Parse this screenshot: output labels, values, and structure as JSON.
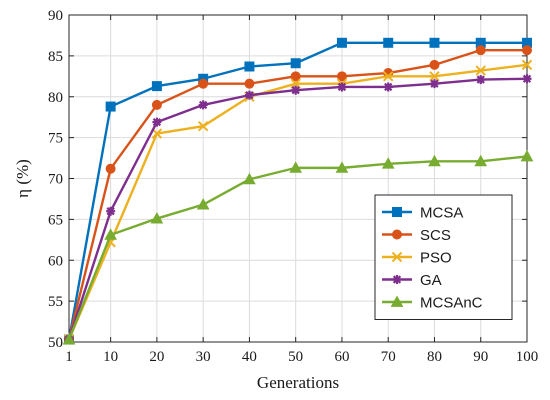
{
  "chart_data": {
    "type": "line",
    "title": "",
    "xlabel": "Generations",
    "ylabel": "η (%)",
    "x": [
      1,
      10,
      20,
      30,
      40,
      50,
      60,
      70,
      80,
      90,
      100
    ],
    "x_ticks": [
      "1",
      "10",
      "20",
      "30",
      "40",
      "50",
      "60",
      "70",
      "80",
      "90",
      "100"
    ],
    "y_ticks": [
      "50",
      "55",
      "60",
      "65",
      "70",
      "75",
      "80",
      "85",
      "90"
    ],
    "xlim": [
      1,
      100
    ],
    "ylim": [
      50,
      90
    ],
    "grid": true,
    "legend_position": "lower-right",
    "series": [
      {
        "name": "MCSA",
        "color": "#0072BD",
        "marker": "square",
        "values": [
          50.3,
          78.8,
          81.3,
          82.2,
          83.7,
          84.1,
          86.6,
          86.6,
          86.6,
          86.6,
          86.6
        ]
      },
      {
        "name": "SCS",
        "color": "#D95319",
        "marker": "circle",
        "values": [
          50.3,
          71.2,
          79.0,
          81.6,
          81.6,
          82.5,
          82.5,
          82.9,
          83.9,
          85.7,
          85.7
        ]
      },
      {
        "name": "PSO",
        "color": "#EDB120",
        "marker": "x",
        "values": [
          50.3,
          62.2,
          75.5,
          76.4,
          80.0,
          81.6,
          81.6,
          82.5,
          82.5,
          83.2,
          83.9
        ]
      },
      {
        "name": "GA",
        "color": "#7E2F8E",
        "marker": "star",
        "values": [
          50.3,
          66.0,
          76.9,
          79.0,
          80.2,
          80.8,
          81.2,
          81.2,
          81.6,
          82.1,
          82.2
        ]
      },
      {
        "name": "MCSAnC",
        "color": "#77AC30",
        "marker": "triangle",
        "values": [
          50.3,
          63.1,
          65.1,
          66.8,
          69.9,
          71.3,
          71.3,
          71.8,
          72.1,
          72.1,
          72.7
        ]
      }
    ]
  }
}
